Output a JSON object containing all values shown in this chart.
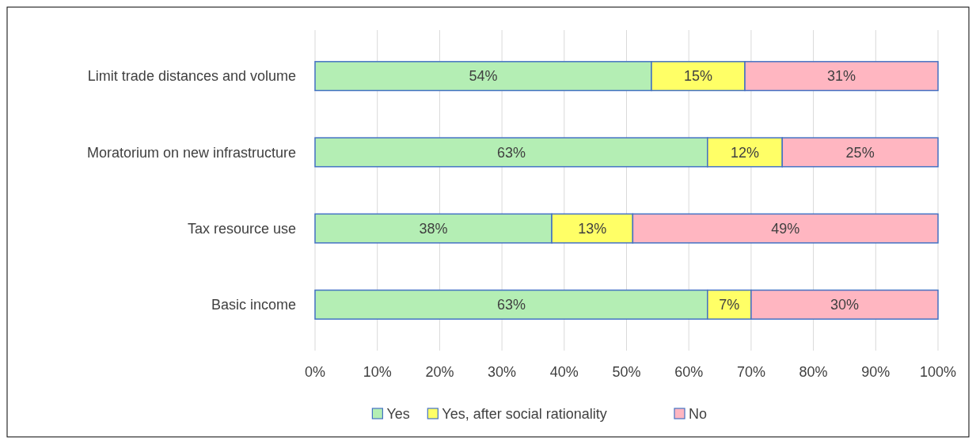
{
  "chart_data": {
    "type": "bar",
    "orientation": "horizontal",
    "stacked": true,
    "categories": [
      "Limit trade distances and volume",
      "Moratorium on new infrastructure",
      "Tax resource use",
      "Basic income"
    ],
    "series": [
      {
        "name": "Yes",
        "color": "#b4eeb4",
        "values": [
          54,
          63,
          38,
          63
        ],
        "value_labels": [
          "54%",
          "63%",
          "38%",
          "63%"
        ]
      },
      {
        "name": "Yes, after social rationality",
        "color": "#ffff66",
        "values": [
          15,
          12,
          13,
          7
        ],
        "value_labels": [
          "15%",
          "12%",
          "13%",
          "7%"
        ]
      },
      {
        "name": "No",
        "color": "#ffb6c1",
        "values": [
          31,
          25,
          49,
          30
        ],
        "value_labels": [
          "31%",
          "25%",
          "49%",
          "30%"
        ]
      }
    ],
    "xlim": [
      0,
      100
    ],
    "xticks": [
      {
        "value": 0,
        "label": "0%"
      },
      {
        "value": 10,
        "label": "10%"
      },
      {
        "value": 20,
        "label": "20%"
      },
      {
        "value": 30,
        "label": "30%"
      },
      {
        "value": 40,
        "label": "40%"
      },
      {
        "value": 50,
        "label": "50%"
      },
      {
        "value": 60,
        "label": "60%"
      },
      {
        "value": 70,
        "label": "70%"
      },
      {
        "value": 80,
        "label": "80%"
      },
      {
        "value": 90,
        "label": "90%"
      },
      {
        "value": 100,
        "label": "100%"
      }
    ],
    "grid": "x",
    "legend": "bottom"
  }
}
